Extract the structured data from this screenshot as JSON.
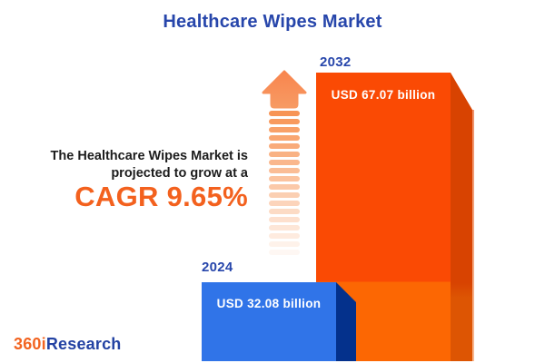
{
  "title": "Healthcare Wipes Market",
  "subtitle": {
    "line1": "The Healthcare Wipes Market is",
    "line2": "projected to grow at a"
  },
  "cagr_text": "CAGR 9.65%",
  "bars": {
    "b2024": {
      "year": "2024",
      "value_label": "USD 32.08 billion"
    },
    "b2032": {
      "year": "2032",
      "value_label": "USD 67.07 billion"
    }
  },
  "logo": {
    "prefix": "360i",
    "suffix": "Research"
  },
  "colors": {
    "title_blue": "#2746AB",
    "cagr_orange": "#F3611E",
    "bar_2024_front": "#3074E8",
    "bar_2024_side": "#04318C",
    "bar_2032_front_top": "#FA4A04",
    "bar_2032_front_bottom": "#FC6703",
    "bar_2032_side_top": "#D84301",
    "bar_2032_side_bottom": "#DD5503",
    "arrow_orange": "#F88A52",
    "logo_orange": "#F26421",
    "logo_blue": "#2342A3"
  },
  "chart_data": {
    "type": "bar",
    "title": "Healthcare Wipes Market",
    "categories": [
      "2024",
      "2032"
    ],
    "values": [
      32.08,
      67.07
    ],
    "unit": "USD billion",
    "value_labels": [
      "USD 32.08 billion",
      "USD 67.07 billion"
    ],
    "cagr_percent": 9.65,
    "annotation": "The Healthcare Wipes Market is projected to grow at a CAGR 9.65%",
    "bar_colors": [
      "#3074E8",
      "#FA4A04"
    ],
    "orientation": "vertical",
    "grid": false,
    "legend": false,
    "source_brand": "360iResearch"
  }
}
